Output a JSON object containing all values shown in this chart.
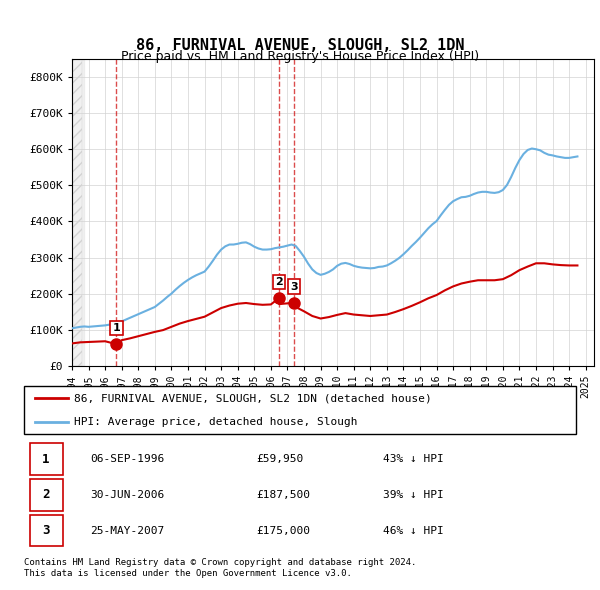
{
  "title": "86, FURNIVAL AVENUE, SLOUGH, SL2 1DN",
  "subtitle": "Price paid vs. HM Land Registry's House Price Index (HPI)",
  "transactions": [
    {
      "label": "1",
      "date_num": 1996.68,
      "price": 59950
    },
    {
      "label": "2",
      "date_num": 2006.49,
      "price": 187500
    },
    {
      "label": "3",
      "date_num": 2007.4,
      "price": 175000
    }
  ],
  "hpi_color": "#6ab0e0",
  "price_color": "#cc0000",
  "marker_color": "#cc0000",
  "vline_color_1": "#cc0000",
  "vline_color_23": "#cc0000",
  "legend_entries": [
    "86, FURNIVAL AVENUE, SLOUGH, SL2 1DN (detached house)",
    "HPI: Average price, detached house, Slough"
  ],
  "table_rows": [
    {
      "num": "1",
      "date": "06-SEP-1996",
      "price": "£59,950",
      "pct": "43% ↓ HPI"
    },
    {
      "num": "2",
      "date": "30-JUN-2006",
      "price": "£187,500",
      "pct": "39% ↓ HPI"
    },
    {
      "num": "3",
      "date": "25-MAY-2007",
      "price": "£175,000",
      "pct": "46% ↓ HPI"
    }
  ],
  "footer": [
    "Contains HM Land Registry data © Crown copyright and database right 2024.",
    "This data is licensed under the Open Government Licence v3.0."
  ],
  "ylim": [
    0,
    850000
  ],
  "xlim_start": 1994.0,
  "xlim_end": 2025.5,
  "yticks": [
    0,
    100000,
    200000,
    300000,
    400000,
    500000,
    600000,
    700000,
    800000
  ],
  "ytick_labels": [
    "£0",
    "£100K",
    "£200K",
    "£300K",
    "£400K",
    "£500K",
    "£600K",
    "£700K",
    "£800K"
  ],
  "xticks": [
    1994,
    1995,
    1996,
    1997,
    1998,
    1999,
    2000,
    2001,
    2002,
    2003,
    2004,
    2005,
    2006,
    2007,
    2008,
    2009,
    2010,
    2011,
    2012,
    2013,
    2014,
    2015,
    2016,
    2017,
    2018,
    2019,
    2020,
    2021,
    2022,
    2023,
    2024,
    2025
  ],
  "hpi_data_x": [
    1994.0,
    1994.25,
    1994.5,
    1994.75,
    1995.0,
    1995.25,
    1995.5,
    1995.75,
    1996.0,
    1996.25,
    1996.5,
    1996.75,
    1997.0,
    1997.25,
    1997.5,
    1997.75,
    1998.0,
    1998.25,
    1998.5,
    1998.75,
    1999.0,
    1999.25,
    1999.5,
    1999.75,
    2000.0,
    2000.25,
    2000.5,
    2000.75,
    2001.0,
    2001.25,
    2001.5,
    2001.75,
    2002.0,
    2002.25,
    2002.5,
    2002.75,
    2003.0,
    2003.25,
    2003.5,
    2003.75,
    2004.0,
    2004.25,
    2004.5,
    2004.75,
    2005.0,
    2005.25,
    2005.5,
    2005.75,
    2006.0,
    2006.25,
    2006.5,
    2006.75,
    2007.0,
    2007.25,
    2007.5,
    2007.75,
    2008.0,
    2008.25,
    2008.5,
    2008.75,
    2009.0,
    2009.25,
    2009.5,
    2009.75,
    2010.0,
    2010.25,
    2010.5,
    2010.75,
    2011.0,
    2011.25,
    2011.5,
    2011.75,
    2012.0,
    2012.25,
    2012.5,
    2012.75,
    2013.0,
    2013.25,
    2013.5,
    2013.75,
    2014.0,
    2014.25,
    2014.5,
    2014.75,
    2015.0,
    2015.25,
    2015.5,
    2015.75,
    2016.0,
    2016.25,
    2016.5,
    2016.75,
    2017.0,
    2017.25,
    2017.5,
    2017.75,
    2018.0,
    2018.25,
    2018.5,
    2018.75,
    2019.0,
    2019.25,
    2019.5,
    2019.75,
    2020.0,
    2020.25,
    2020.5,
    2020.75,
    2021.0,
    2021.25,
    2021.5,
    2021.75,
    2022.0,
    2022.25,
    2022.5,
    2022.75,
    2023.0,
    2023.25,
    2023.5,
    2023.75,
    2024.0,
    2024.25,
    2024.5
  ],
  "hpi_data_y": [
    104000,
    106000,
    108000,
    109000,
    108000,
    109000,
    110000,
    111000,
    112000,
    114000,
    116000,
    119000,
    123000,
    128000,
    133000,
    138000,
    143000,
    148000,
    153000,
    158000,
    163000,
    172000,
    181000,
    191000,
    200000,
    211000,
    221000,
    230000,
    238000,
    245000,
    251000,
    256000,
    261000,
    275000,
    291000,
    308000,
    322000,
    331000,
    336000,
    336000,
    338000,
    341000,
    342000,
    337000,
    330000,
    325000,
    322000,
    322000,
    323000,
    326000,
    328000,
    330000,
    333000,
    336000,
    332000,
    318000,
    302000,
    283000,
    267000,
    257000,
    252000,
    255000,
    260000,
    267000,
    277000,
    283000,
    285000,
    282000,
    277000,
    274000,
    272000,
    271000,
    270000,
    271000,
    274000,
    275000,
    278000,
    284000,
    291000,
    299000,
    309000,
    320000,
    332000,
    343000,
    355000,
    368000,
    381000,
    392000,
    401000,
    417000,
    432000,
    446000,
    456000,
    462000,
    467000,
    468000,
    471000,
    476000,
    480000,
    482000,
    482000,
    480000,
    479000,
    481000,
    487000,
    501000,
    523000,
    548000,
    570000,
    587000,
    598000,
    602000,
    600000,
    597000,
    590000,
    585000,
    583000,
    580000,
    578000,
    576000,
    576000,
    578000,
    580000
  ],
  "price_data_x": [
    1994.0,
    1994.5,
    1995.0,
    1995.5,
    1996.0,
    1996.68,
    1997.0,
    1997.5,
    1998.0,
    1998.5,
    1999.0,
    1999.5,
    2000.0,
    2000.5,
    2001.0,
    2001.5,
    2002.0,
    2002.5,
    2003.0,
    2003.5,
    2004.0,
    2004.5,
    2005.0,
    2005.5,
    2006.0,
    2006.49,
    2006.5,
    2007.0,
    2007.4,
    2007.5,
    2008.0,
    2008.5,
    2009.0,
    2009.5,
    2010.0,
    2010.5,
    2011.0,
    2011.5,
    2012.0,
    2012.5,
    2013.0,
    2013.5,
    2014.0,
    2014.5,
    2015.0,
    2015.5,
    2016.0,
    2016.5,
    2017.0,
    2017.5,
    2018.0,
    2018.5,
    2019.0,
    2019.5,
    2020.0,
    2020.5,
    2021.0,
    2021.5,
    2022.0,
    2022.5,
    2023.0,
    2023.5,
    2024.0,
    2024.5
  ],
  "price_data_y": [
    62000,
    65000,
    66000,
    67000,
    68000,
    59950,
    71000,
    76000,
    82000,
    88000,
    94000,
    99000,
    108000,
    117000,
    124000,
    130000,
    136000,
    148000,
    160000,
    167000,
    172000,
    174000,
    171000,
    169000,
    170000,
    187500,
    171000,
    173000,
    175000,
    163000,
    151000,
    138000,
    131000,
    135000,
    141000,
    146000,
    142000,
    140000,
    138000,
    140000,
    142000,
    149000,
    157000,
    166000,
    176000,
    187000,
    196000,
    209000,
    220000,
    228000,
    233000,
    237000,
    237000,
    237000,
    240000,
    251000,
    265000,
    275000,
    284000,
    284000,
    281000,
    279000,
    278000,
    278000
  ]
}
